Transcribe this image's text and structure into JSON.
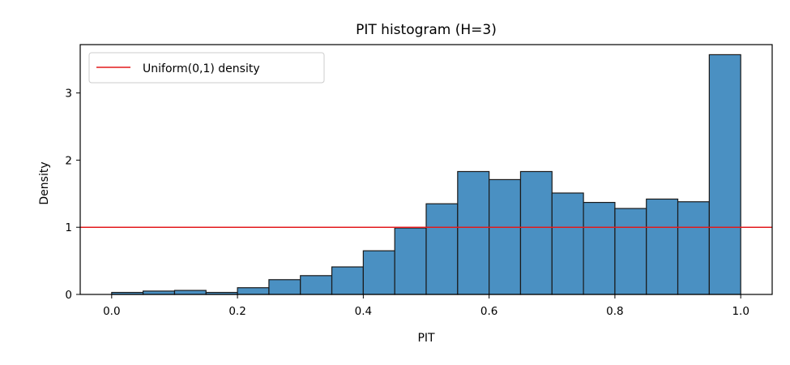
{
  "chart_data": {
    "type": "bar",
    "title": "PIT histogram (H=3)",
    "xlabel": "PIT",
    "ylabel": "Density",
    "xlim": [
      -0.05,
      1.05
    ],
    "ylim": [
      0,
      3.72
    ],
    "xticks": [
      0.0,
      0.2,
      0.4,
      0.6,
      0.8,
      1.0
    ],
    "xtick_labels": [
      "0.0",
      "0.2",
      "0.4",
      "0.6",
      "0.8",
      "1.0"
    ],
    "yticks": [
      0,
      1,
      2,
      3
    ],
    "ytick_labels": [
      "0",
      "1",
      "2",
      "3"
    ],
    "bin_edges": [
      0.0,
      0.05,
      0.1,
      0.15,
      0.2,
      0.25,
      0.3,
      0.35,
      0.4,
      0.45,
      0.5,
      0.55,
      0.6,
      0.65,
      0.7,
      0.75,
      0.8,
      0.85,
      0.9,
      0.95,
      1.0
    ],
    "values": [
      0.03,
      0.05,
      0.06,
      0.03,
      0.1,
      0.22,
      0.28,
      0.41,
      0.65,
      0.99,
      1.35,
      1.83,
      1.71,
      1.83,
      1.51,
      1.37,
      1.28,
      1.42,
      1.38,
      3.57
    ],
    "bar_color": "#4a90c2",
    "bar_edge_color": "#1a1a1a",
    "reference_line": {
      "label": "Uniform(0,1) density",
      "y": 1,
      "color": "#e31a1c"
    },
    "legend": {
      "position": "top-left",
      "entries": [
        "Uniform(0,1) density"
      ]
    },
    "grid": false
  }
}
